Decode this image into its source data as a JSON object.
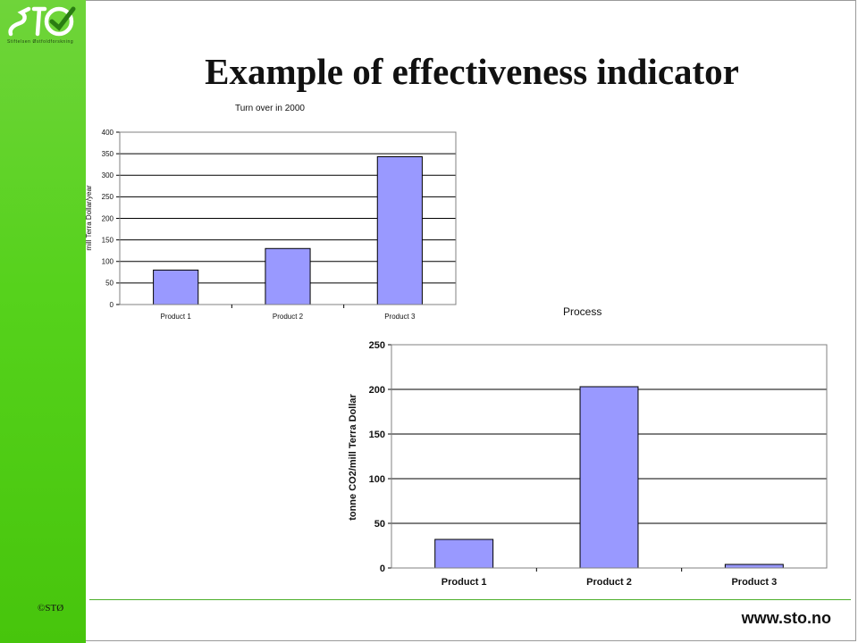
{
  "brand": {
    "tagline": "Stiftelsen Østfoldforskning",
    "copyright": "©STØ",
    "website": "www.sto.no",
    "accent_color": "#56d21c",
    "bar_color": "#9999ff"
  },
  "slide": {
    "title": "Example of effectiveness indicator",
    "process_label": "Process"
  },
  "chart_data": [
    {
      "type": "bar",
      "title": "Turn over in 2000",
      "ylabel": "mill Terra Dollar/year",
      "xlabel": "",
      "categories": [
        "Product 1",
        "Product 2",
        "Product 3"
      ],
      "values": [
        80,
        130,
        343
      ],
      "ylim": [
        0,
        400
      ],
      "yticks": [
        0,
        50,
        100,
        150,
        200,
        250,
        300,
        350,
        400
      ],
      "grid": true,
      "legend": "none"
    },
    {
      "type": "bar",
      "title": "",
      "ylabel": "tonne CO2/mill Terra Dollar",
      "xlabel": "",
      "categories": [
        "Product 1",
        "Product 2",
        "Product 3"
      ],
      "values": [
        32,
        203,
        4
      ],
      "ylim": [
        0,
        250
      ],
      "yticks": [
        0,
        50,
        100,
        150,
        200,
        250
      ],
      "grid": true,
      "legend": "none"
    }
  ]
}
